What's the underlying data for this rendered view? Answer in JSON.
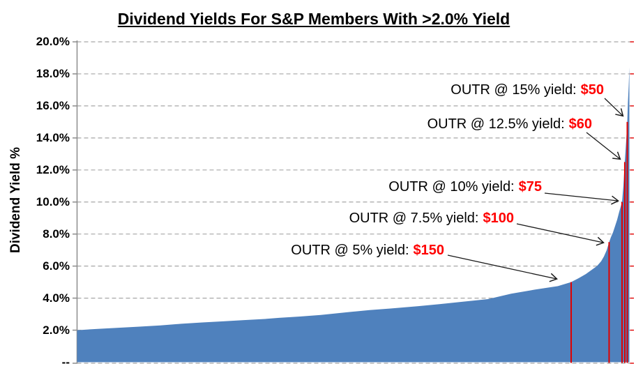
{
  "title": "Dividend Yields For S&P Members With >2.0% Yield",
  "y_axis": {
    "label": "Dividend Yield %",
    "tick_labels": [
      "20.0%",
      "18.0%",
      "16.0%",
      "14.0%",
      "12.0%",
      "10.0%",
      "8.0%",
      "6.0%",
      "4.0%",
      "2.0%",
      "--"
    ]
  },
  "colors": {
    "area": "#4F81BD",
    "marker_line": "#E00000",
    "annotation_value": "#FF0000",
    "annotation_text": "#000000",
    "grid": "#A6A6A6",
    "axis": "#8C8C8C",
    "arrow": "#1a1a1a"
  },
  "chart_data": {
    "type": "area",
    "title": "Dividend Yields For S&P Members With >2.0% Yield",
    "xlabel": "",
    "ylabel": "Dividend Yield %",
    "ylim": [
      0,
      20
    ],
    "y_tick_step_pct": 2,
    "y_tick_labels": [
      "20.0%",
      "18.0%",
      "16.0%",
      "14.0%",
      "12.0%",
      "10.0%",
      "8.0%",
      "6.0%",
      "4.0%",
      "2.0%",
      "--"
    ],
    "grid": "horizontal-dashed",
    "legend": "none",
    "x_description": "S&P members with >2.0% yield, sorted ascending by dividend yield (x-axis unlabeled)",
    "series": [
      {
        "name": "Dividend Yield %",
        "x_frac": [
          0,
          0.0373,
          0.0751,
          0.113,
          0.1509,
          0.1888,
          0.2267,
          0.2645,
          0.3024,
          0.3403,
          0.3655,
          0.4034,
          0.4413,
          0.4918,
          0.5297,
          0.5676,
          0.6181,
          0.656,
          0.6938,
          0.7443,
          0.786,
          0.8289,
          0.8706,
          0.8946,
          0.9085,
          0.9211,
          0.9312,
          0.9413,
          0.9489,
          0.9539,
          0.959,
          0.9634,
          0.9666,
          0.9703,
          0.9741,
          0.9779,
          0.9817,
          0.9842,
          0.9867,
          0.9892,
          0.9917,
          0.9942,
          0.9962,
          0.9974,
          0.9987,
          1
        ],
        "y_pct": [
          2.0,
          2.08,
          2.15,
          2.22,
          2.3,
          2.4,
          2.48,
          2.55,
          2.63,
          2.7,
          2.77,
          2.85,
          2.95,
          3.13,
          3.25,
          3.35,
          3.5,
          3.62,
          3.76,
          3.94,
          4.28,
          4.53,
          4.75,
          5.0,
          5.25,
          5.5,
          5.75,
          6.0,
          6.3,
          6.6,
          7.0,
          7.5,
          7.8,
          8.1,
          8.5,
          8.9,
          9.4,
          9.7,
          10.0,
          11.0,
          12.5,
          13.8,
          15.0,
          16.2,
          17.2,
          18.4
        ]
      }
    ],
    "markers": [
      {
        "label_prefix": "OUTR @ 15% yield:",
        "value": "$50",
        "yield_pct": 15,
        "x_frac": 0.9962
      },
      {
        "label_prefix": "OUTR @ 12.5% yield:",
        "value": "$60",
        "yield_pct": 12.5,
        "x_frac": 0.9917
      },
      {
        "label_prefix": "OUTR @ 10% yield:",
        "value": "$75",
        "yield_pct": 10,
        "x_frac": 0.9867
      },
      {
        "label_prefix": "OUTR @ 7.5% yield:",
        "value": "$100",
        "yield_pct": 7.5,
        "x_frac": 0.9633
      },
      {
        "label_prefix": "OUTR @ 5% yield:",
        "value": "$150",
        "yield_pct": 5,
        "x_frac": 0.8946
      }
    ]
  }
}
